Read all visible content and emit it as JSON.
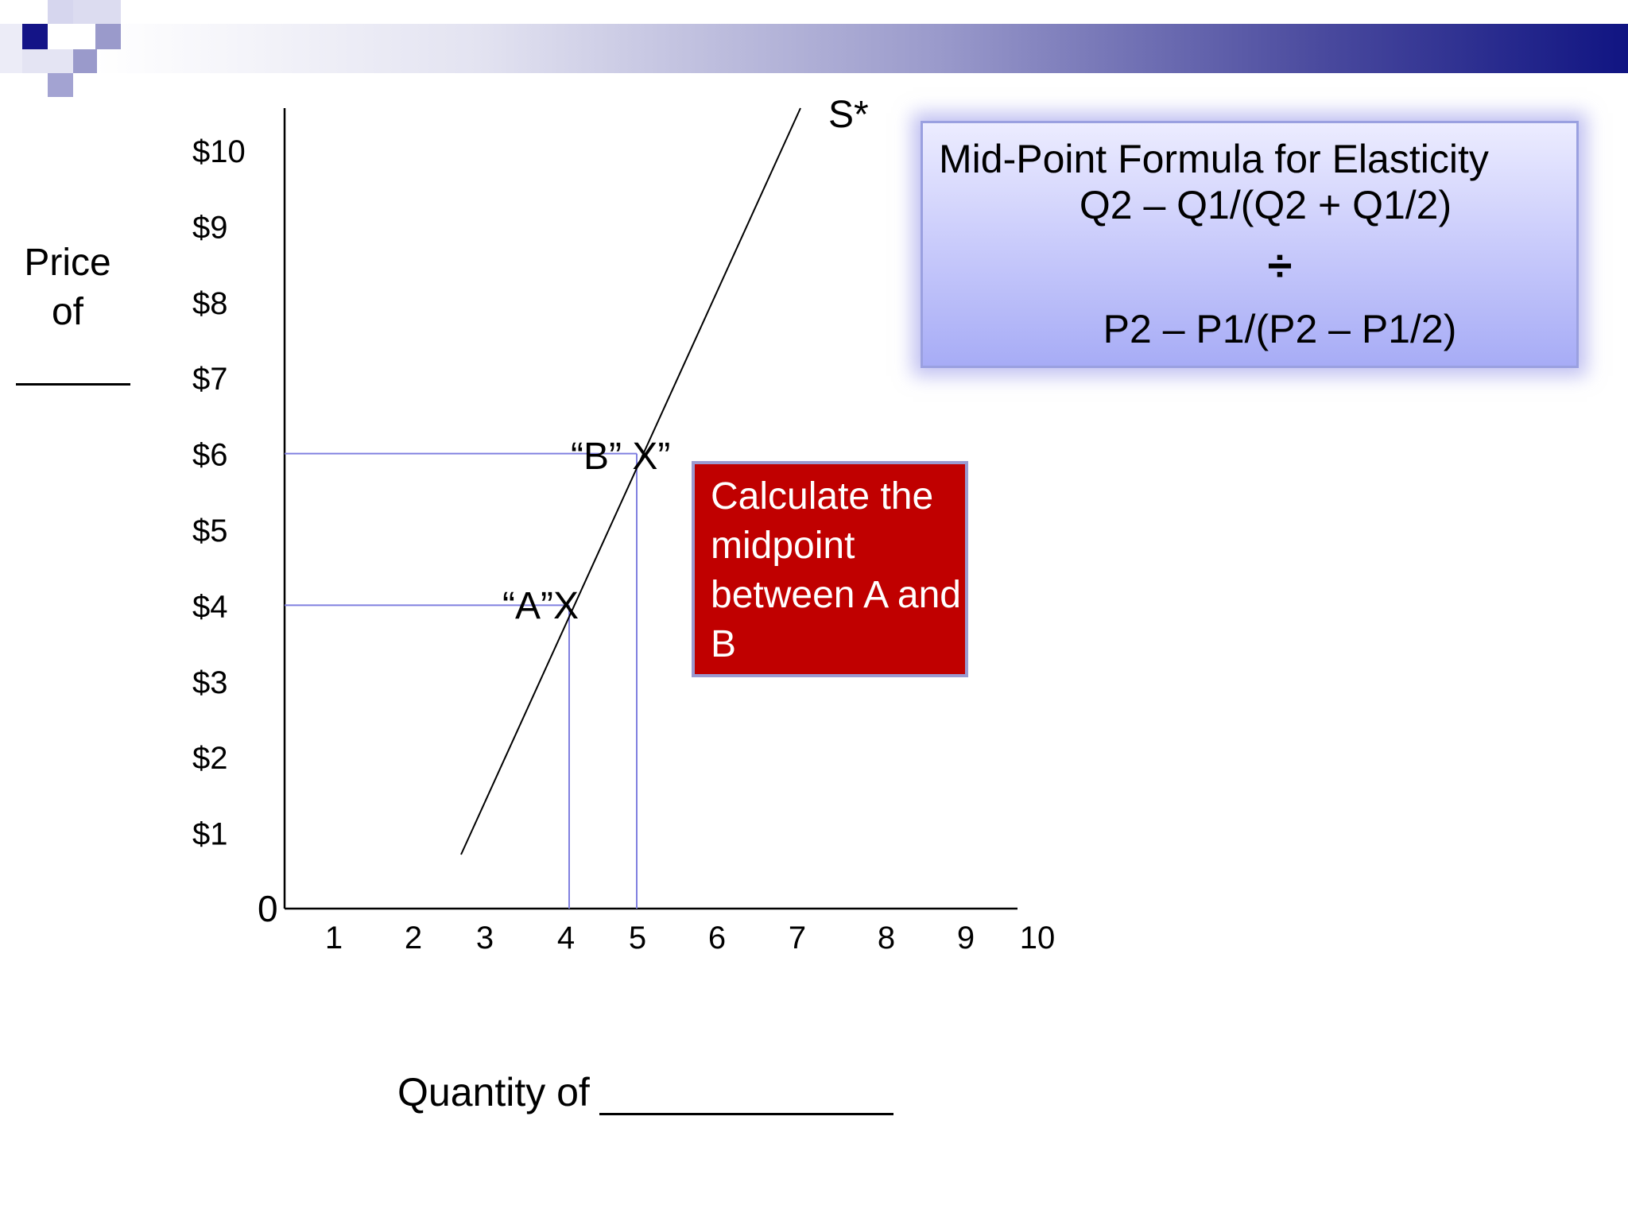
{
  "chart_data": {
    "type": "line",
    "series": [
      {
        "name": "S*",
        "x": [
          2.65,
          7.1
        ],
        "y": [
          0.7,
          10.5
        ]
      }
    ],
    "points": [
      {
        "label": "“A”X",
        "x": 4,
        "y": 4
      },
      {
        "label": "“B” X”",
        "x": 5,
        "y": 6
      }
    ],
    "x_ticks": [
      "1",
      "2",
      "3",
      "4",
      "5",
      "6",
      "7",
      "8",
      "9",
      "10"
    ],
    "y_ticks": [
      "$1",
      "$2",
      "$3",
      "$4",
      "$5",
      "$6",
      "$7",
      "$8",
      "$9",
      "$10"
    ],
    "origin_label": "0",
    "xlim": [
      0,
      10
    ],
    "ylim": [
      0,
      10.5
    ],
    "grid": false
  },
  "labels": {
    "y_axis": "Price of",
    "x_axis": "Quantity of"
  },
  "formula_box": {
    "title": "Mid-Point Formula for Elasticity",
    "numerator": "Q2 – Q1/(Q2 + Q1/2)",
    "divide": "÷",
    "denominator": "P2 – P1/(P2 – P1/2)"
  },
  "callout": {
    "text": "Calculate the midpoint between A and B"
  },
  "colors": {
    "callout_bg": "#c00000",
    "guide_lines": "#8080e0",
    "header_dark": "#101482"
  }
}
